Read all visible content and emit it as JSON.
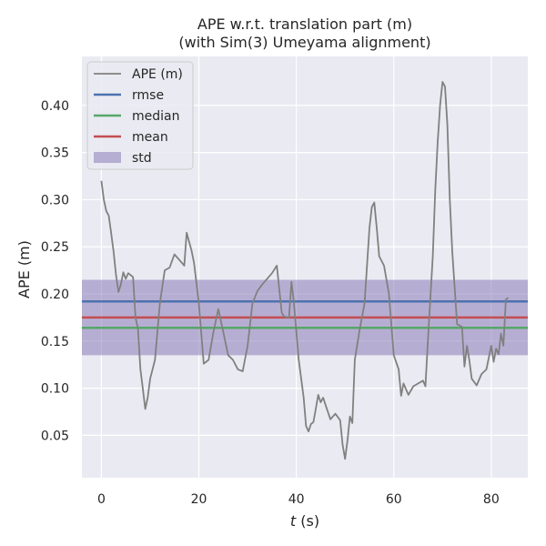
{
  "chart_data": {
    "type": "line",
    "title": "APE w.r.t. translation part (m)",
    "subtitle": "(with Sim(3) Umeyama alignment)",
    "xlabel_italic": "t",
    "xlabel_rest": " (s)",
    "ylabel": "APE (m)",
    "xlim": [
      -4,
      87.5
    ],
    "ylim": [
      0.005,
      0.452
    ],
    "xticks": [
      0,
      20,
      40,
      60,
      80
    ],
    "xtick_labels": [
      "0",
      "20",
      "40",
      "60",
      "80"
    ],
    "yticks": [
      0.05,
      0.1,
      0.15,
      0.2,
      0.25,
      0.3,
      0.35,
      0.4
    ],
    "ytick_labels": [
      "0.05",
      "0.10",
      "0.15",
      "0.20",
      "0.25",
      "0.30",
      "0.35",
      "0.40"
    ],
    "grid": true,
    "legend_position": "top-left",
    "legend": [
      "APE (m)",
      "rmse",
      "median",
      "mean",
      "std"
    ],
    "colors": {
      "background": "#eaeaf2",
      "grid": "#ffffff",
      "ape": "#808080",
      "rmse": "#4c72b0",
      "median": "#55a868",
      "mean": "#c44e52",
      "std": "#8172b2"
    },
    "stats": {
      "rmse": 0.192,
      "median": 0.164,
      "mean": 0.175,
      "std_low": 0.135,
      "std_high": 0.215
    },
    "series": [
      {
        "name": "APE (m)",
        "x": [
          0.0,
          0.5,
          1.0,
          1.5,
          2.0,
          2.5,
          3.0,
          3.5,
          4.0,
          4.5,
          5.0,
          5.5,
          6.0,
          6.5,
          7.0,
          7.5,
          8.0,
          8.5,
          9.0,
          9.5,
          10.0,
          11.0,
          12.0,
          13.0,
          14.0,
          15.0,
          16.0,
          17.0,
          17.5,
          18.5,
          19.0,
          20.0,
          21.0,
          22.0,
          23.0,
          24.0,
          25.0,
          26.0,
          27.0,
          28.0,
          29.0,
          30.0,
          31.0,
          32.0,
          33.0,
          35.0,
          36.0,
          37.0,
          37.5,
          38.5,
          39.0,
          39.5,
          40.5,
          41.0,
          41.5,
          42.0,
          42.5,
          43.0,
          43.5,
          44.0,
          44.5,
          45.0,
          45.5,
          46.0,
          47.0,
          48.0,
          49.0,
          49.5,
          50.0,
          50.5,
          51.0,
          51.5,
          52.0,
          53.0,
          54.0,
          55.0,
          55.5,
          56.0,
          56.5,
          57.0,
          58.0,
          59.0,
          60.0,
          61.0,
          61.5,
          62.0,
          63.0,
          64.0,
          65.0,
          66.0,
          66.5,
          67.0,
          68.0,
          68.5,
          69.0,
          69.5,
          70.0,
          70.5,
          71.0,
          71.5,
          72.0,
          73.0,
          74.0,
          74.5,
          75.0,
          75.5,
          76.0,
          77.0,
          78.0,
          79.0,
          80.0,
          80.5,
          81.0,
          81.5,
          82.0,
          82.5,
          83.0,
          83.5
        ],
        "values": [
          0.32,
          0.3,
          0.288,
          0.283,
          0.265,
          0.245,
          0.22,
          0.202,
          0.21,
          0.223,
          0.216,
          0.222,
          0.22,
          0.218,
          0.175,
          0.163,
          0.12,
          0.1,
          0.078,
          0.09,
          0.11,
          0.13,
          0.19,
          0.225,
          0.228,
          0.242,
          0.236,
          0.23,
          0.265,
          0.246,
          0.233,
          0.19,
          0.126,
          0.13,
          0.16,
          0.184,
          0.16,
          0.135,
          0.13,
          0.12,
          0.118,
          0.145,
          0.19,
          0.203,
          0.21,
          0.222,
          0.23,
          0.18,
          0.176,
          0.175,
          0.213,
          0.19,
          0.13,
          0.11,
          0.09,
          0.06,
          0.054,
          0.062,
          0.064,
          0.078,
          0.093,
          0.085,
          0.09,
          0.082,
          0.067,
          0.073,
          0.066,
          0.04,
          0.025,
          0.045,
          0.07,
          0.063,
          0.13,
          0.162,
          0.19,
          0.27,
          0.292,
          0.297,
          0.27,
          0.24,
          0.23,
          0.2,
          0.135,
          0.12,
          0.092,
          0.105,
          0.093,
          0.102,
          0.105,
          0.108,
          0.102,
          0.15,
          0.24,
          0.31,
          0.36,
          0.4,
          0.425,
          0.42,
          0.38,
          0.3,
          0.245,
          0.168,
          0.165,
          0.123,
          0.145,
          0.13,
          0.11,
          0.103,
          0.115,
          0.12,
          0.145,
          0.128,
          0.142,
          0.136,
          0.158,
          0.145,
          0.194,
          0.196
        ]
      }
    ]
  }
}
